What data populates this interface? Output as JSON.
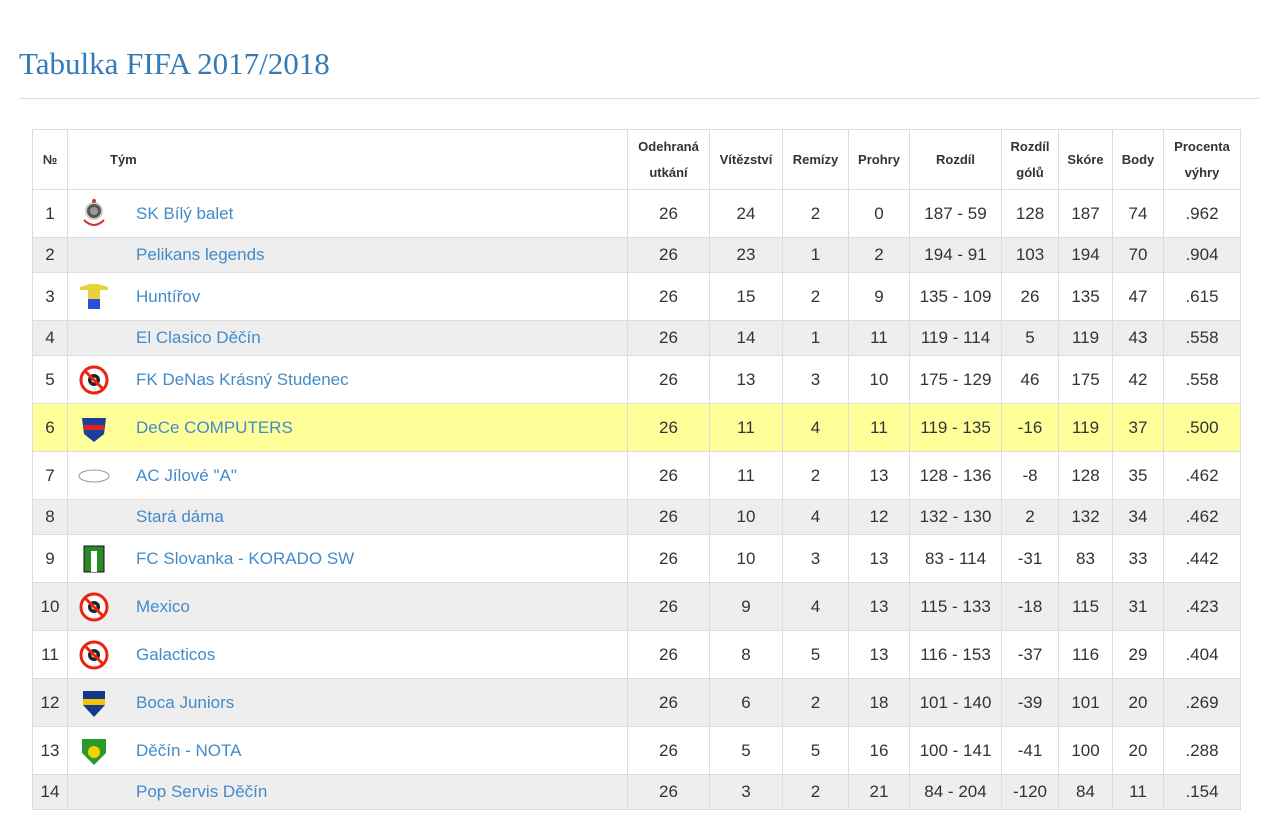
{
  "title": "Tabulka FIFA 2017/2018",
  "headers": [
    "№",
    "Tým",
    "Odehraná utkání",
    "Vítězství",
    "Remízy",
    "Prohry",
    "Rozdíl",
    "Rozdíl gólů",
    "Skóre",
    "Body",
    "Procenta výhry"
  ],
  "highlight_color": "#ffff99",
  "rows": [
    {
      "pos": "1",
      "team": "SK Bílý balet",
      "logo": "anchor-logo",
      "p": "26",
      "w": "24",
      "d": "2",
      "l": "0",
      "diff": "187 - 59",
      "gd": "128",
      "score": "187",
      "pts": "74",
      "pct": ".962"
    },
    {
      "pos": "2",
      "team": "Pelikans legends",
      "logo": "",
      "p": "26",
      "w": "23",
      "d": "1",
      "l": "2",
      "diff": "194 - 91",
      "gd": "103",
      "score": "194",
      "pts": "70",
      "pct": ".904"
    },
    {
      "pos": "3",
      "team": "Huntířov",
      "logo": "jersey-logo",
      "p": "26",
      "w": "15",
      "d": "2",
      "l": "9",
      "diff": "135 - 109",
      "gd": "26",
      "score": "135",
      "pts": "47",
      "pct": ".615"
    },
    {
      "pos": "4",
      "team": "El Clasico Děčín",
      "logo": "",
      "p": "26",
      "w": "14",
      "d": "1",
      "l": "11",
      "diff": "119 - 114",
      "gd": "5",
      "score": "119",
      "pts": "43",
      "pct": ".558"
    },
    {
      "pos": "5",
      "team": "FK DeNas Krásný Studenec",
      "logo": "no-logo-ball",
      "p": "26",
      "w": "13",
      "d": "3",
      "l": "10",
      "diff": "175 - 129",
      "gd": "46",
      "score": "175",
      "pts": "42",
      "pct": ".558"
    },
    {
      "pos": "6",
      "team": "DeCe COMPUTERS",
      "logo": "dece-logo",
      "p": "26",
      "w": "11",
      "d": "4",
      "l": "11",
      "diff": "119 - 135",
      "gd": "-16",
      "score": "119",
      "pts": "37",
      "pct": ".500",
      "highlight": true
    },
    {
      "pos": "7",
      "team": "AC Jílové \"A\"",
      "logo": "ac-logo",
      "p": "26",
      "w": "11",
      "d": "2",
      "l": "13",
      "diff": "128 - 136",
      "gd": "-8",
      "score": "128",
      "pts": "35",
      "pct": ".462"
    },
    {
      "pos": "8",
      "team": "Stará dáma",
      "logo": "",
      "p": "26",
      "w": "10",
      "d": "4",
      "l": "12",
      "diff": "132 - 130",
      "gd": "2",
      "score": "132",
      "pts": "34",
      "pct": ".462"
    },
    {
      "pos": "9",
      "team": "FC Slovanka - KORADO SW",
      "logo": "slovanka-logo",
      "p": "26",
      "w": "10",
      "d": "3",
      "l": "13",
      "diff": "83 - 114",
      "gd": "-31",
      "score": "83",
      "pts": "33",
      "pct": ".442"
    },
    {
      "pos": "10",
      "team": "Mexico",
      "logo": "no-logo-ball",
      "p": "26",
      "w": "9",
      "d": "4",
      "l": "13",
      "diff": "115 - 133",
      "gd": "-18",
      "score": "115",
      "pts": "31",
      "pct": ".423"
    },
    {
      "pos": "11",
      "team": "Galacticos",
      "logo": "no-logo-ball",
      "p": "26",
      "w": "8",
      "d": "5",
      "l": "13",
      "diff": "116 - 153",
      "gd": "-37",
      "score": "116",
      "pts": "29",
      "pct": ".404"
    },
    {
      "pos": "12",
      "team": "Boca Juniors",
      "logo": "boca-logo",
      "p": "26",
      "w": "6",
      "d": "2",
      "l": "18",
      "diff": "101 - 140",
      "gd": "-39",
      "score": "101",
      "pts": "20",
      "pct": ".269"
    },
    {
      "pos": "13",
      "team": "Děčín - NOTA",
      "logo": "nota-logo",
      "p": "26",
      "w": "5",
      "d": "5",
      "l": "16",
      "diff": "100 - 141",
      "gd": "-41",
      "score": "100",
      "pts": "20",
      "pct": ".288"
    },
    {
      "pos": "14",
      "team": "Pop Servis Děčín",
      "logo": "",
      "p": "26",
      "w": "3",
      "d": "2",
      "l": "21",
      "diff": "84 - 204",
      "gd": "-120",
      "score": "84",
      "pts": "11",
      "pct": ".154"
    }
  ]
}
